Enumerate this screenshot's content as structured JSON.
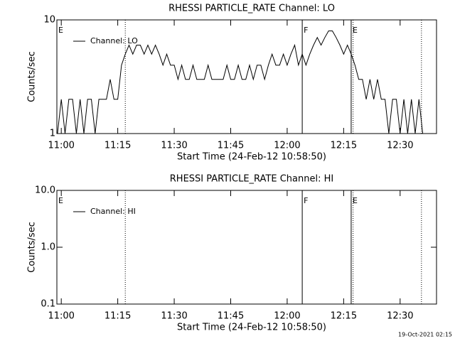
{
  "chart_data": [
    {
      "type": "line",
      "title": "RHESSI PARTICLE_RATE Channel: LO",
      "ylabel": "Counts/sec",
      "xlabel": "Start Time (24-Feb-12 10:58:50)",
      "log_y": true,
      "ylim": [
        1,
        10
      ],
      "yticks": [
        1,
        10
      ],
      "xlim": [
        "10:58:50",
        "12:39:40"
      ],
      "xticks": [
        "11:00",
        "11:15",
        "11:30",
        "11:45",
        "12:00",
        "12:15",
        "12:30"
      ],
      "legend": "upper left",
      "x": [
        "10:59",
        "11:00",
        "11:01",
        "11:02",
        "11:03",
        "11:04",
        "11:05",
        "11:06",
        "11:07",
        "11:08",
        "11:09",
        "11:10",
        "11:11",
        "11:12",
        "11:13",
        "11:14",
        "11:15",
        "11:16",
        "11:17",
        "11:18",
        "11:19",
        "11:20",
        "11:21",
        "11:22",
        "11:23",
        "11:24",
        "11:25",
        "11:26",
        "11:27",
        "11:28",
        "11:29",
        "11:30",
        "11:31",
        "11:32",
        "11:33",
        "11:34",
        "11:35",
        "11:36",
        "11:37",
        "11:38",
        "11:39",
        "11:40",
        "11:41",
        "11:42",
        "11:43",
        "11:44",
        "11:45",
        "11:46",
        "11:47",
        "11:48",
        "11:49",
        "11:50",
        "11:51",
        "11:52",
        "11:53",
        "11:54",
        "11:55",
        "11:56",
        "11:57",
        "11:58",
        "11:59",
        "12:00",
        "12:01",
        "12:02",
        "12:03",
        "12:04",
        "12:05",
        "12:06",
        "12:07",
        "12:08",
        "12:09",
        "12:10",
        "12:11",
        "12:12",
        "12:13",
        "12:14",
        "12:15",
        "12:16",
        "12:17",
        "12:18",
        "12:19",
        "12:20",
        "12:21",
        "12:22",
        "12:23",
        "12:24",
        "12:25",
        "12:26",
        "12:27",
        "12:28",
        "12:29",
        "12:30",
        "12:31",
        "12:32",
        "12:33",
        "12:34",
        "12:35",
        "12:36"
      ],
      "series": [
        {
          "name": "Channel: LO",
          "color": "#000000",
          "values": [
            1,
            2,
            1,
            2,
            2,
            1,
            2,
            1,
            2,
            2,
            1,
            2,
            2,
            2,
            3,
            2,
            2,
            4,
            5,
            6,
            5,
            6,
            6,
            5,
            6,
            5,
            6,
            5,
            4,
            5,
            4,
            4,
            3,
            4,
            3,
            3,
            4,
            3,
            3,
            3,
            4,
            3,
            3,
            3,
            3,
            4,
            3,
            3,
            4,
            3,
            3,
            4,
            3,
            4,
            4,
            3,
            4,
            5,
            4,
            4,
            5,
            4,
            5,
            6,
            4,
            5,
            4,
            5,
            6,
            7,
            6,
            7,
            8,
            8,
            7,
            6,
            5,
            6,
            5,
            4,
            3,
            3,
            2,
            3,
            2,
            3,
            2,
            2,
            1,
            2,
            2,
            1,
            2,
            1,
            2,
            1,
            2,
            1
          ]
        }
      ],
      "markers": [
        {
          "x": "11:17",
          "style": "dotted"
        },
        {
          "x": "12:04",
          "style": "solid"
        },
        {
          "x": "12:17",
          "style": "solid"
        },
        {
          "x": "12:17:30",
          "style": "dotted"
        },
        {
          "x": "12:35:40",
          "style": "dotted"
        }
      ],
      "labels": [
        {
          "x": "10:58:50",
          "text": "E"
        },
        {
          "x": "12:04",
          "text": "F"
        },
        {
          "x": "12:17",
          "text": "E"
        }
      ]
    },
    {
      "type": "line",
      "title": "RHESSI PARTICLE_RATE Channel: HI",
      "ylabel": "Counts/sec",
      "xlabel": "Start Time (24-Feb-12 10:58:50)",
      "log_y": true,
      "ylim": [
        0.1,
        10
      ],
      "yticks": [
        0.1,
        {
          "value": 1,
          "label": "1.0"
        },
        {
          "value": 10,
          "label": "10.0"
        }
      ],
      "xlim": [
        "10:58:50",
        "12:39:40"
      ],
      "xticks": [
        "11:00",
        "11:15",
        "11:30",
        "11:45",
        "12:00",
        "12:15",
        "12:30"
      ],
      "legend": "upper left",
      "x": [],
      "series": [
        {
          "name": "Channel: HI",
          "color": "#000000",
          "values": []
        }
      ],
      "markers": [
        {
          "x": "11:17",
          "style": "dotted"
        },
        {
          "x": "12:04",
          "style": "solid"
        },
        {
          "x": "12:17",
          "style": "solid"
        },
        {
          "x": "12:17:30",
          "style": "dotted"
        },
        {
          "x": "12:35:40",
          "style": "dotted"
        }
      ],
      "labels": [
        {
          "x": "10:58:50",
          "text": "E"
        },
        {
          "x": "12:04",
          "text": "F"
        },
        {
          "x": "12:17",
          "text": "E"
        }
      ]
    }
  ],
  "footer": "19-Oct-2021 02:15"
}
